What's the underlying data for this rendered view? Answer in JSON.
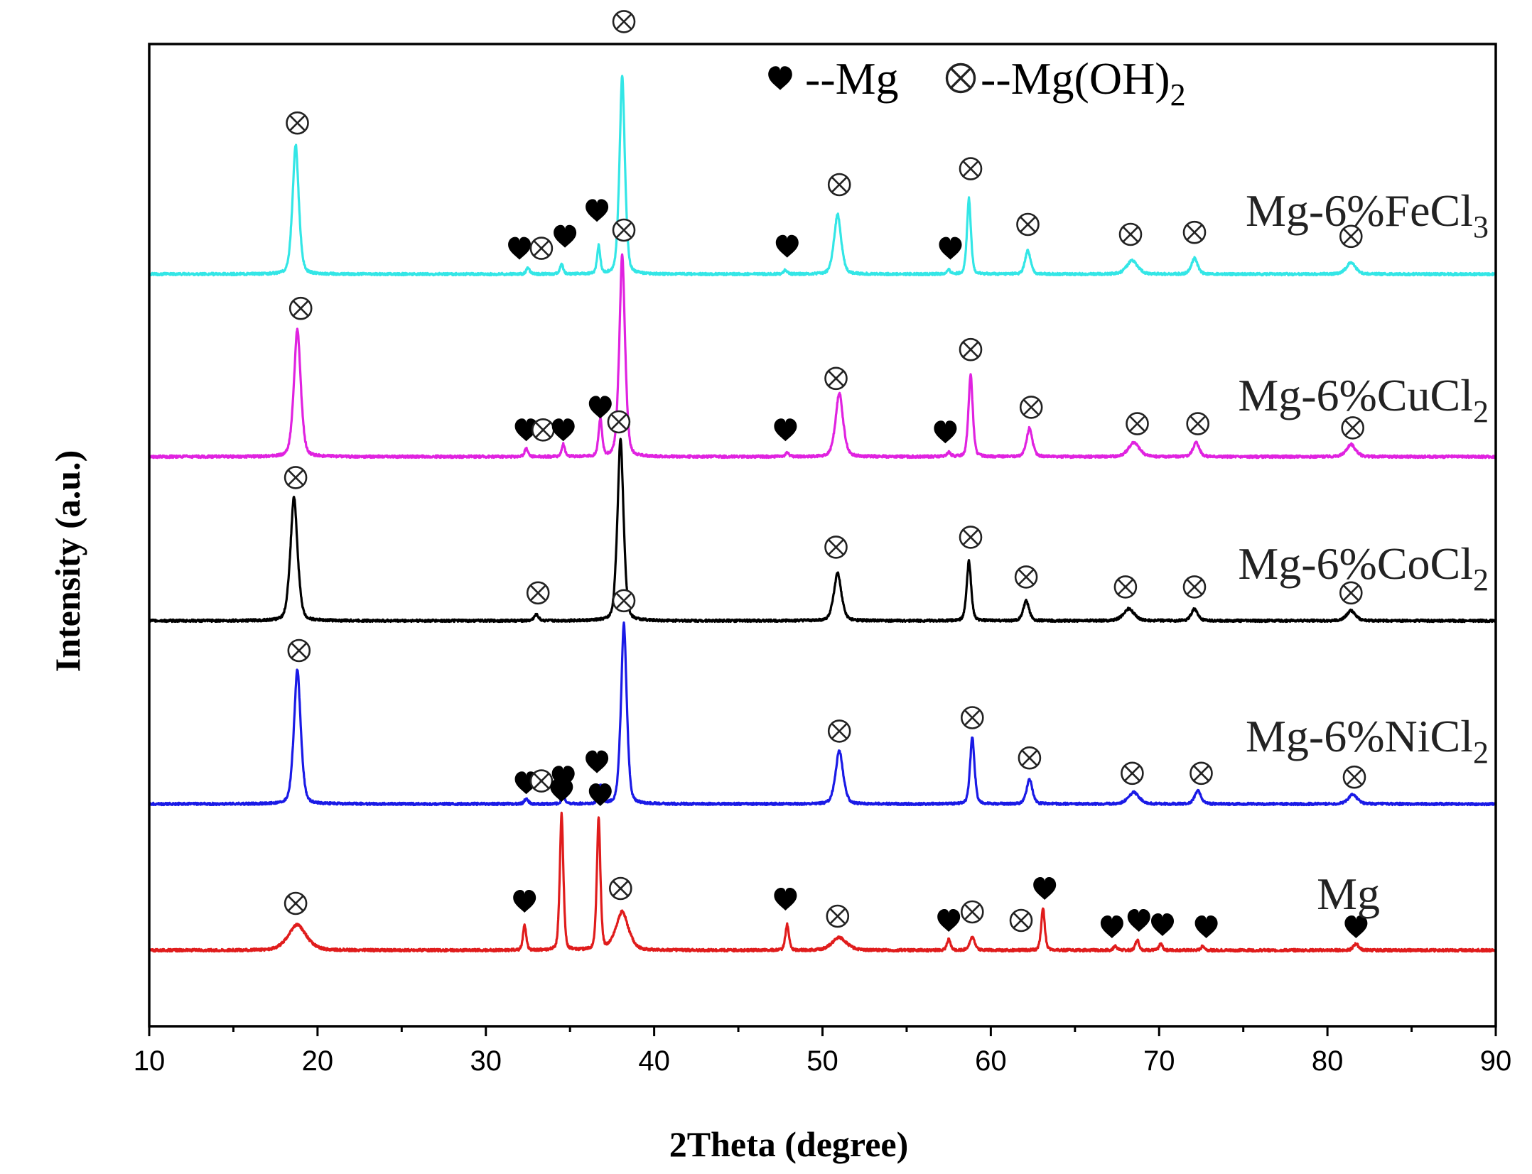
{
  "chart_data": {
    "type": "line",
    "title": "",
    "xlabel": "2Theta (degree)",
    "ylabel": "Intensity (a.u.)",
    "xlim": [
      10,
      90
    ],
    "xticks": [
      10,
      20,
      30,
      40,
      50,
      60,
      70,
      80,
      90
    ],
    "grid": false,
    "legend": {
      "position": "top-center",
      "entries": [
        {
          "symbol": "heart",
          "label": "--Mg"
        },
        {
          "symbol": "otimes",
          "label": "--Mg(OH)",
          "subscript": "2"
        }
      ]
    },
    "series": [
      {
        "name": "Mg-6%FeCl",
        "subscript": "3",
        "color": "#33e6e6",
        "baseline": 0,
        "peaks": [
          {
            "x": 18.7,
            "height": 0.65,
            "width": 0.35
          },
          {
            "x": 32.5,
            "height": 0.03,
            "width": 0.2
          },
          {
            "x": 34.5,
            "height": 0.05,
            "width": 0.18
          },
          {
            "x": 36.7,
            "height": 0.14,
            "width": 0.18
          },
          {
            "x": 38.1,
            "height": 1.0,
            "width": 0.3
          },
          {
            "x": 47.8,
            "height": 0.02,
            "width": 0.2
          },
          {
            "x": 50.9,
            "height": 0.3,
            "width": 0.4
          },
          {
            "x": 57.5,
            "height": 0.02,
            "width": 0.2
          },
          {
            "x": 58.7,
            "height": 0.38,
            "width": 0.22
          },
          {
            "x": 62.2,
            "height": 0.12,
            "width": 0.3
          },
          {
            "x": 68.4,
            "height": 0.07,
            "width": 0.6
          },
          {
            "x": 72.1,
            "height": 0.08,
            "width": 0.35
          },
          {
            "x": 81.4,
            "height": 0.06,
            "width": 0.5
          }
        ],
        "markers": [
          {
            "type": "otimes",
            "x": 18.8,
            "y": 0.76
          },
          {
            "type": "heart",
            "x": 32.0,
            "y": 0.13
          },
          {
            "type": "otimes",
            "x": 33.3,
            "y": 0.13
          },
          {
            "type": "heart",
            "x": 34.7,
            "y": 0.19
          },
          {
            "type": "heart",
            "x": 36.6,
            "y": 0.32
          },
          {
            "type": "otimes",
            "x": 38.2,
            "y": 1.27
          },
          {
            "type": "heart",
            "x": 47.9,
            "y": 0.14
          },
          {
            "type": "otimes",
            "x": 51.0,
            "y": 0.45
          },
          {
            "type": "heart",
            "x": 57.6,
            "y": 0.13
          },
          {
            "type": "otimes",
            "x": 58.8,
            "y": 0.53
          },
          {
            "type": "otimes",
            "x": 62.2,
            "y": 0.25
          },
          {
            "type": "otimes",
            "x": 68.3,
            "y": 0.2
          },
          {
            "type": "otimes",
            "x": 72.1,
            "y": 0.21
          },
          {
            "type": "otimes",
            "x": 81.4,
            "y": 0.19
          }
        ]
      },
      {
        "name": "Mg-6%CuCl",
        "subscript": "2",
        "color": "#e022e0",
        "baseline": 0,
        "peaks": [
          {
            "x": 18.8,
            "height": 0.62,
            "width": 0.38
          },
          {
            "x": 32.4,
            "height": 0.04,
            "width": 0.2
          },
          {
            "x": 34.6,
            "height": 0.06,
            "width": 0.18
          },
          {
            "x": 36.8,
            "height": 0.18,
            "width": 0.2
          },
          {
            "x": 38.1,
            "height": 0.98,
            "width": 0.32
          },
          {
            "x": 47.9,
            "height": 0.02,
            "width": 0.2
          },
          {
            "x": 51.0,
            "height": 0.31,
            "width": 0.42
          },
          {
            "x": 57.5,
            "height": 0.02,
            "width": 0.2
          },
          {
            "x": 58.8,
            "height": 0.4,
            "width": 0.24
          },
          {
            "x": 62.3,
            "height": 0.14,
            "width": 0.32
          },
          {
            "x": 68.5,
            "height": 0.07,
            "width": 0.6
          },
          {
            "x": 72.2,
            "height": 0.07,
            "width": 0.35
          },
          {
            "x": 81.4,
            "height": 0.06,
            "width": 0.5
          }
        ],
        "markers": [
          {
            "type": "otimes",
            "x": 19.0,
            "y": 0.72
          },
          {
            "type": "heart",
            "x": 32.4,
            "y": 0.13
          },
          {
            "type": "otimes",
            "x": 33.4,
            "y": 0.13
          },
          {
            "type": "heart",
            "x": 34.6,
            "y": 0.13
          },
          {
            "type": "heart",
            "x": 36.8,
            "y": 0.24
          },
          {
            "type": "otimes",
            "x": 38.2,
            "y": 1.1
          },
          {
            "type": "heart",
            "x": 47.8,
            "y": 0.13
          },
          {
            "type": "otimes",
            "x": 50.8,
            "y": 0.38
          },
          {
            "type": "heart",
            "x": 57.3,
            "y": 0.12
          },
          {
            "type": "otimes",
            "x": 58.8,
            "y": 0.52
          },
          {
            "type": "otimes",
            "x": 62.4,
            "y": 0.24
          },
          {
            "type": "otimes",
            "x": 68.7,
            "y": 0.16
          },
          {
            "type": "otimes",
            "x": 72.3,
            "y": 0.16
          },
          {
            "type": "otimes",
            "x": 81.5,
            "y": 0.14
          }
        ]
      },
      {
        "name": "Mg-6%CoCl",
        "subscript": "2",
        "color": "#000000",
        "baseline": 0,
        "peaks": [
          {
            "x": 18.6,
            "height": 0.62,
            "width": 0.4
          },
          {
            "x": 33.0,
            "height": 0.03,
            "width": 0.25
          },
          {
            "x": 38.0,
            "height": 0.92,
            "width": 0.34
          },
          {
            "x": 50.9,
            "height": 0.24,
            "width": 0.42
          },
          {
            "x": 58.7,
            "height": 0.3,
            "width": 0.25
          },
          {
            "x": 62.1,
            "height": 0.1,
            "width": 0.32
          },
          {
            "x": 68.2,
            "height": 0.06,
            "width": 0.6
          },
          {
            "x": 72.1,
            "height": 0.06,
            "width": 0.35
          },
          {
            "x": 81.4,
            "height": 0.05,
            "width": 0.5
          }
        ],
        "markers": [
          {
            "type": "otimes",
            "x": 18.7,
            "y": 0.72
          },
          {
            "type": "otimes",
            "x": 33.1,
            "y": 0.14
          },
          {
            "type": "otimes",
            "x": 37.9,
            "y": 1.0
          },
          {
            "type": "otimes",
            "x": 50.8,
            "y": 0.37
          },
          {
            "type": "otimes",
            "x": 58.8,
            "y": 0.42
          },
          {
            "type": "otimes",
            "x": 62.1,
            "y": 0.22
          },
          {
            "type": "otimes",
            "x": 68.0,
            "y": 0.17
          },
          {
            "type": "otimes",
            "x": 72.1,
            "y": 0.17
          },
          {
            "type": "otimes",
            "x": 81.4,
            "y": 0.14
          }
        ]
      },
      {
        "name": "Mg-6%NiCl",
        "subscript": "2",
        "color": "#1a1ae6",
        "baseline": 0,
        "peaks": [
          {
            "x": 18.8,
            "height": 0.7,
            "width": 0.38
          },
          {
            "x": 32.4,
            "height": 0.03,
            "width": 0.2
          },
          {
            "x": 34.6,
            "height": 0.05,
            "width": 0.18
          },
          {
            "x": 36.8,
            "height": 0.1,
            "width": 0.18
          },
          {
            "x": 38.2,
            "height": 0.94,
            "width": 0.32
          },
          {
            "x": 51.0,
            "height": 0.28,
            "width": 0.42
          },
          {
            "x": 58.9,
            "height": 0.35,
            "width": 0.25
          },
          {
            "x": 62.3,
            "height": 0.13,
            "width": 0.32
          },
          {
            "x": 68.5,
            "height": 0.06,
            "width": 0.6
          },
          {
            "x": 72.3,
            "height": 0.07,
            "width": 0.35
          },
          {
            "x": 81.5,
            "height": 0.05,
            "width": 0.5
          }
        ],
        "markers": [
          {
            "type": "otimes",
            "x": 18.9,
            "y": 0.8
          },
          {
            "type": "heart",
            "x": 32.4,
            "y": 0.11
          },
          {
            "type": "otimes",
            "x": 33.3,
            "y": 0.12
          },
          {
            "type": "heart",
            "x": 34.6,
            "y": 0.14
          },
          {
            "type": "heart",
            "x": 36.6,
            "y": 0.22
          },
          {
            "type": "otimes",
            "x": 38.2,
            "y": 1.06
          },
          {
            "type": "otimes",
            "x": 51.0,
            "y": 0.38
          },
          {
            "type": "otimes",
            "x": 58.9,
            "y": 0.45
          },
          {
            "type": "otimes",
            "x": 62.3,
            "y": 0.24
          },
          {
            "type": "otimes",
            "x": 68.4,
            "y": 0.16
          },
          {
            "type": "otimes",
            "x": 72.5,
            "y": 0.16
          },
          {
            "type": "otimes",
            "x": 81.6,
            "y": 0.14
          }
        ]
      },
      {
        "name": "Mg",
        "subscript": "",
        "color": "#e01c1c",
        "baseline": 0,
        "peaks": [
          {
            "x": 18.8,
            "height": 0.12,
            "width": 1.0
          },
          {
            "x": 32.3,
            "height": 0.12,
            "width": 0.18
          },
          {
            "x": 34.5,
            "height": 0.64,
            "width": 0.2
          },
          {
            "x": 36.7,
            "height": 0.62,
            "width": 0.2
          },
          {
            "x": 38.1,
            "height": 0.18,
            "width": 0.7
          },
          {
            "x": 47.9,
            "height": 0.12,
            "width": 0.2
          },
          {
            "x": 51.0,
            "height": 0.06,
            "width": 0.8
          },
          {
            "x": 57.5,
            "height": 0.05,
            "width": 0.2
          },
          {
            "x": 58.9,
            "height": 0.06,
            "width": 0.3
          },
          {
            "x": 63.1,
            "height": 0.2,
            "width": 0.2
          },
          {
            "x": 67.4,
            "height": 0.02,
            "width": 0.2
          },
          {
            "x": 68.7,
            "height": 0.05,
            "width": 0.2
          },
          {
            "x": 70.1,
            "height": 0.03,
            "width": 0.2
          },
          {
            "x": 72.6,
            "height": 0.02,
            "width": 0.2
          },
          {
            "x": 81.7,
            "height": 0.03,
            "width": 0.3
          }
        ],
        "markers": [
          {
            "type": "otimes",
            "x": 18.7,
            "y": 0.22
          },
          {
            "type": "heart",
            "x": 32.3,
            "y": 0.23
          },
          {
            "type": "heart",
            "x": 34.5,
            "y": 0.75
          },
          {
            "type": "heart",
            "x": 36.8,
            "y": 0.73
          },
          {
            "type": "otimes",
            "x": 38.0,
            "y": 0.29
          },
          {
            "type": "heart",
            "x": 47.8,
            "y": 0.24
          },
          {
            "type": "otimes",
            "x": 50.9,
            "y": 0.16
          },
          {
            "type": "heart",
            "x": 57.5,
            "y": 0.14
          },
          {
            "type": "otimes",
            "x": 58.9,
            "y": 0.18
          },
          {
            "type": "otimes",
            "x": 61.8,
            "y": 0.14
          },
          {
            "type": "heart",
            "x": 63.2,
            "y": 0.29
          },
          {
            "type": "heart",
            "x": 67.2,
            "y": 0.11
          },
          {
            "type": "heart",
            "x": 68.8,
            "y": 0.14
          },
          {
            "type": "heart",
            "x": 70.2,
            "y": 0.12
          },
          {
            "type": "heart",
            "x": 72.8,
            "y": 0.11
          },
          {
            "type": "heart",
            "x": 81.7,
            "y": 0.11
          }
        ]
      }
    ]
  }
}
